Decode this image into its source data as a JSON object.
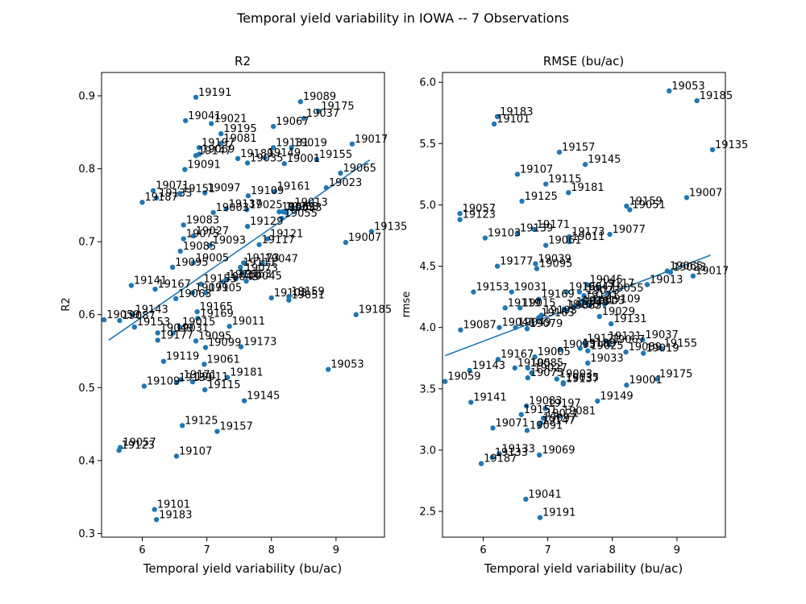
{
  "figure": {
    "suptitle": "Temporal yield variability in IOWA -- 7 Observations"
  },
  "chart_data": [
    {
      "type": "scatter",
      "title": "R2",
      "xlabel": "Temporal yield variability (bu/ac)",
      "ylabel": "R2",
      "xlim": [
        5.37,
        9.75
      ],
      "ylim": [
        0.295,
        0.932
      ],
      "xticks": [
        6,
        7,
        8,
        9
      ],
      "yticks": [
        0.3,
        0.4,
        0.5,
        0.6,
        0.7,
        0.8,
        0.9
      ],
      "xtick_labels": [
        "6",
        "7",
        "8",
        "9"
      ],
      "ytick_labels": [
        "0.3",
        "0.4",
        "0.5",
        "0.6",
        "0.7",
        "0.8",
        "0.9"
      ],
      "grid": false,
      "trendline": {
        "x": [
          5.48,
          9.52
        ],
        "y": [
          0.565,
          0.812
        ]
      },
      "points": [
        {
          "x": 6.83,
          "y": 0.898,
          "label": "19191"
        },
        {
          "x": 8.45,
          "y": 0.892,
          "label": "19089"
        },
        {
          "x": 8.73,
          "y": 0.879,
          "label": "19175"
        },
        {
          "x": 8.5,
          "y": 0.869,
          "label": "19037"
        },
        {
          "x": 6.67,
          "y": 0.866,
          "label": "19041"
        },
        {
          "x": 7.07,
          "y": 0.862,
          "label": "19021"
        },
        {
          "x": 8.03,
          "y": 0.858,
          "label": "19067"
        },
        {
          "x": 7.22,
          "y": 0.848,
          "label": "19195"
        },
        {
          "x": 7.22,
          "y": 0.835,
          "label": "19081"
        },
        {
          "x": 9.25,
          "y": 0.834,
          "label": "19017"
        },
        {
          "x": 8.03,
          "y": 0.829,
          "label": "19131"
        },
        {
          "x": 8.31,
          "y": 0.829,
          "label": "19019"
        },
        {
          "x": 6.88,
          "y": 0.829,
          "label": "19197"
        },
        {
          "x": 6.88,
          "y": 0.82,
          "label": "19069"
        },
        {
          "x": 6.83,
          "y": 0.818,
          "label": "19147"
        },
        {
          "x": 7.48,
          "y": 0.814,
          "label": "19189"
        },
        {
          "x": 7.9,
          "y": 0.815,
          "label": "19149"
        },
        {
          "x": 7.63,
          "y": 0.808,
          "label": "19035"
        },
        {
          "x": 8.7,
          "y": 0.813,
          "label": "19155"
        },
        {
          "x": 8.2,
          "y": 0.807,
          "label": "19001"
        },
        {
          "x": 6.66,
          "y": 0.799,
          "label": "19091"
        },
        {
          "x": 9.07,
          "y": 0.794,
          "label": "19065"
        },
        {
          "x": 8.85,
          "y": 0.774,
          "label": "19023"
        },
        {
          "x": 6.17,
          "y": 0.77,
          "label": "19071"
        },
        {
          "x": 8.05,
          "y": 0.769,
          "label": "19161"
        },
        {
          "x": 6.97,
          "y": 0.767,
          "label": "19097"
        },
        {
          "x": 6.58,
          "y": 0.766,
          "label": "19151"
        },
        {
          "x": 7.64,
          "y": 0.763,
          "label": "19109"
        },
        {
          "x": 6.22,
          "y": 0.76,
          "label": "19133"
        },
        {
          "x": 6.0,
          "y": 0.754,
          "label": "19187"
        },
        {
          "x": 8.32,
          "y": 0.747,
          "label": "19013"
        },
        {
          "x": 7.3,
          "y": 0.745,
          "label": "19137"
        },
        {
          "x": 7.62,
          "y": 0.744,
          "label": "19025"
        },
        {
          "x": 7.1,
          "y": 0.74,
          "label": "19003"
        },
        {
          "x": 8.12,
          "y": 0.741,
          "label": "19039"
        },
        {
          "x": 8.18,
          "y": 0.741,
          "label": "19063"
        },
        {
          "x": 8.23,
          "y": 0.74,
          "label": "19033"
        },
        {
          "x": 8.16,
          "y": 0.732,
          "label": "19055"
        },
        {
          "x": 6.64,
          "y": 0.723,
          "label": "19083"
        },
        {
          "x": 7.63,
          "y": 0.721,
          "label": "19129"
        },
        {
          "x": 9.55,
          "y": 0.714,
          "label": "19135"
        },
        {
          "x": 6.79,
          "y": 0.708,
          "label": "19027"
        },
        {
          "x": 6.64,
          "y": 0.704,
          "label": "19075"
        },
        {
          "x": 7.94,
          "y": 0.704,
          "label": "19121"
        },
        {
          "x": 9.15,
          "y": 0.699,
          "label": "19007"
        },
        {
          "x": 7.81,
          "y": 0.696,
          "label": "19117"
        },
        {
          "x": 7.05,
          "y": 0.695,
          "label": "19093"
        },
        {
          "x": 6.59,
          "y": 0.687,
          "label": "19085"
        },
        {
          "x": 6.79,
          "y": 0.671,
          "label": "19005"
        },
        {
          "x": 7.57,
          "y": 0.671,
          "label": "19173"
        },
        {
          "x": 7.86,
          "y": 0.67,
          "label": "19047"
        },
        {
          "x": 6.47,
          "y": 0.665,
          "label": "19095"
        },
        {
          "x": 7.52,
          "y": 0.665,
          "label": "19111"
        },
        {
          "x": 7.55,
          "y": 0.657,
          "label": "19073"
        },
        {
          "x": 7.45,
          "y": 0.649,
          "label": "19163"
        },
        {
          "x": 7.3,
          "y": 0.648,
          "label": "19165"
        },
        {
          "x": 7.61,
          "y": 0.646,
          "label": "19045"
        },
        {
          "x": 7.25,
          "y": 0.645,
          "label": "19043"
        },
        {
          "x": 6.91,
          "y": 0.642,
          "label": "19153"
        },
        {
          "x": 5.83,
          "y": 0.64,
          "label": "19141"
        },
        {
          "x": 6.2,
          "y": 0.635,
          "label": "19167"
        },
        {
          "x": 6.78,
          "y": 0.63,
          "label": "19079"
        },
        {
          "x": 6.99,
          "y": 0.63,
          "label": "19105"
        },
        {
          "x": 6.52,
          "y": 0.622,
          "label": "19063"
        },
        {
          "x": 8.0,
          "y": 0.623,
          "label": "19103"
        },
        {
          "x": 8.27,
          "y": 0.625,
          "label": "19159"
        },
        {
          "x": 8.27,
          "y": 0.62,
          "label": "19051"
        },
        {
          "x": 6.85,
          "y": 0.604,
          "label": "19165"
        },
        {
          "x": 9.31,
          "y": 0.6,
          "label": "19185"
        },
        {
          "x": 5.85,
          "y": 0.6,
          "label": "19143"
        },
        {
          "x": 6.86,
          "y": 0.595,
          "label": "19169"
        },
        {
          "x": 5.41,
          "y": 0.593,
          "label": "19059"
        },
        {
          "x": 5.65,
          "y": 0.592,
          "label": "19087"
        },
        {
          "x": 7.35,
          "y": 0.584,
          "label": "19011"
        },
        {
          "x": 5.88,
          "y": 0.583,
          "label": "19153"
        },
        {
          "x": 6.58,
          "y": 0.583,
          "label": "19015"
        },
        {
          "x": 6.24,
          "y": 0.575,
          "label": "19049"
        },
        {
          "x": 6.48,
          "y": 0.575,
          "label": "19031"
        },
        {
          "x": 6.24,
          "y": 0.565,
          "label": "19177"
        },
        {
          "x": 6.83,
          "y": 0.564,
          "label": "19095"
        },
        {
          "x": 7.53,
          "y": 0.556,
          "label": "19173"
        },
        {
          "x": 6.98,
          "y": 0.555,
          "label": "19099"
        },
        {
          "x": 6.33,
          "y": 0.536,
          "label": "19119"
        },
        {
          "x": 6.96,
          "y": 0.532,
          "label": "19061"
        },
        {
          "x": 7.32,
          "y": 0.514,
          "label": "19181"
        },
        {
          "x": 6.6,
          "y": 0.511,
          "label": "19171"
        },
        {
          "x": 6.78,
          "y": 0.508,
          "label": "19011"
        },
        {
          "x": 6.53,
          "y": 0.507,
          "label": "19139"
        },
        {
          "x": 6.03,
          "y": 0.502,
          "label": "19109"
        },
        {
          "x": 6.97,
          "y": 0.497,
          "label": "19115"
        },
        {
          "x": 7.58,
          "y": 0.482,
          "label": "19145"
        },
        {
          "x": 8.88,
          "y": 0.525,
          "label": "19053"
        },
        {
          "x": 6.62,
          "y": 0.448,
          "label": "19125"
        },
        {
          "x": 7.16,
          "y": 0.44,
          "label": "19157"
        },
        {
          "x": 5.66,
          "y": 0.418,
          "label": "19057"
        },
        {
          "x": 5.64,
          "y": 0.414,
          "label": "19123"
        },
        {
          "x": 6.53,
          "y": 0.406,
          "label": "19107"
        },
        {
          "x": 6.19,
          "y": 0.333,
          "label": "19101"
        },
        {
          "x": 6.22,
          "y": 0.319,
          "label": "19183"
        }
      ]
    },
    {
      "type": "scatter",
      "title": "RMSE (bu/ac)",
      "xlabel": "Temporal yield variability (bu/ac)",
      "ylabel": "rmse",
      "xlim": [
        5.37,
        9.75
      ],
      "ylim": [
        2.29,
        6.08
      ],
      "xticks": [
        6,
        7,
        8,
        9
      ],
      "yticks": [
        2.5,
        3.0,
        3.5,
        4.0,
        4.5,
        5.0,
        5.5,
        6.0
      ],
      "xtick_labels": [
        "6",
        "7",
        "8",
        "9"
      ],
      "ytick_labels": [
        "2.5",
        "3.0",
        "3.5",
        "4.0",
        "4.5",
        "5.0",
        "5.5",
        "6.0"
      ],
      "grid": false,
      "trendline": {
        "x": [
          5.41,
          9.52
        ],
        "y": [
          3.77,
          4.59
        ]
      },
      "points": [
        {
          "x": 8.88,
          "y": 5.93,
          "label": "19053"
        },
        {
          "x": 9.31,
          "y": 5.85,
          "label": "19185"
        },
        {
          "x": 6.22,
          "y": 5.72,
          "label": "19183"
        },
        {
          "x": 6.17,
          "y": 5.66,
          "label": "19101"
        },
        {
          "x": 9.55,
          "y": 5.45,
          "label": "19135"
        },
        {
          "x": 7.18,
          "y": 5.43,
          "label": "19157"
        },
        {
          "x": 7.58,
          "y": 5.33,
          "label": "19145"
        },
        {
          "x": 6.53,
          "y": 5.25,
          "label": "19107"
        },
        {
          "x": 6.97,
          "y": 5.17,
          "label": "19115"
        },
        {
          "x": 7.32,
          "y": 5.1,
          "label": "19181"
        },
        {
          "x": 9.15,
          "y": 5.06,
          "label": "19007"
        },
        {
          "x": 6.6,
          "y": 5.03,
          "label": "19125"
        },
        {
          "x": 8.22,
          "y": 4.99,
          "label": "19159"
        },
        {
          "x": 8.27,
          "y": 4.96,
          "label": "19051"
        },
        {
          "x": 5.64,
          "y": 4.93,
          "label": "19057"
        },
        {
          "x": 5.64,
          "y": 4.88,
          "label": "19123"
        },
        {
          "x": 6.79,
          "y": 4.8,
          "label": "19171"
        },
        {
          "x": 7.96,
          "y": 4.76,
          "label": "19077"
        },
        {
          "x": 6.53,
          "y": 4.77,
          "label": "19139"
        },
        {
          "x": 7.33,
          "y": 4.74,
          "label": "19173"
        },
        {
          "x": 6.03,
          "y": 4.73,
          "label": "19103"
        },
        {
          "x": 7.33,
          "y": 4.7,
          "label": "19011"
        },
        {
          "x": 6.97,
          "y": 4.67,
          "label": "19061"
        },
        {
          "x": 6.81,
          "y": 4.52,
          "label": "19039"
        },
        {
          "x": 6.22,
          "y": 4.5,
          "label": "19177"
        },
        {
          "x": 6.83,
          "y": 4.48,
          "label": "19095"
        },
        {
          "x": 9.25,
          "y": 4.42,
          "label": "19017"
        },
        {
          "x": 8.85,
          "y": 4.46,
          "label": "19065"
        },
        {
          "x": 8.9,
          "y": 4.45,
          "label": "19023"
        },
        {
          "x": 8.54,
          "y": 4.35,
          "label": "19013"
        },
        {
          "x": 7.61,
          "y": 4.35,
          "label": "19045"
        },
        {
          "x": 7.79,
          "y": 4.32,
          "label": "19117"
        },
        {
          "x": 5.85,
          "y": 4.29,
          "label": "19153"
        },
        {
          "x": 6.44,
          "y": 4.29,
          "label": "19031"
        },
        {
          "x": 7.29,
          "y": 4.29,
          "label": "19165"
        },
        {
          "x": 7.49,
          "y": 4.29,
          "label": "19047"
        },
        {
          "x": 7.93,
          "y": 4.28,
          "label": "19055"
        },
        {
          "x": 7.56,
          "y": 4.26,
          "label": "19073"
        },
        {
          "x": 6.86,
          "y": 4.23,
          "label": "19169"
        },
        {
          "x": 7.54,
          "y": 4.22,
          "label": "19121"
        },
        {
          "x": 7.88,
          "y": 4.19,
          "label": "19109"
        },
        {
          "x": 6.34,
          "y": 4.16,
          "label": "19119"
        },
        {
          "x": 7.4,
          "y": 4.17,
          "label": "19043"
        },
        {
          "x": 7.5,
          "y": 4.18,
          "label": "19161"
        },
        {
          "x": 7.64,
          "y": 4.18,
          "label": "19003"
        },
        {
          "x": 6.57,
          "y": 4.16,
          "label": "19015"
        },
        {
          "x": 7.25,
          "y": 4.15,
          "label": "19135"
        },
        {
          "x": 7.28,
          "y": 4.14,
          "label": "19063"
        },
        {
          "x": 6.9,
          "y": 4.1,
          "label": "19193"
        },
        {
          "x": 6.86,
          "y": 4.08,
          "label": "19163"
        },
        {
          "x": 7.8,
          "y": 4.09,
          "label": "19029"
        },
        {
          "x": 7.98,
          "y": 4.03,
          "label": "19131"
        },
        {
          "x": 6.25,
          "y": 4.0,
          "label": "19043"
        },
        {
          "x": 6.5,
          "y": 4.0,
          "label": "19049"
        },
        {
          "x": 6.68,
          "y": 3.99,
          "label": "19079"
        },
        {
          "x": 5.65,
          "y": 3.98,
          "label": "19087"
        },
        {
          "x": 8.47,
          "y": 3.9,
          "label": "19037"
        },
        {
          "x": 7.9,
          "y": 3.89,
          "label": "19121"
        },
        {
          "x": 7.57,
          "y": 3.87,
          "label": "19121"
        },
        {
          "x": 7.95,
          "y": 3.86,
          "label": "19067"
        },
        {
          "x": 8.76,
          "y": 3.83,
          "label": "19155"
        },
        {
          "x": 7.19,
          "y": 3.82,
          "label": "19093"
        },
        {
          "x": 7.5,
          "y": 3.83,
          "label": "19189"
        },
        {
          "x": 7.62,
          "y": 3.81,
          "label": "19025"
        },
        {
          "x": 8.48,
          "y": 3.79,
          "label": "19019"
        },
        {
          "x": 8.21,
          "y": 3.8,
          "label": "19089"
        },
        {
          "x": 6.23,
          "y": 3.74,
          "label": "19167"
        },
        {
          "x": 6.8,
          "y": 3.76,
          "label": "19005"
        },
        {
          "x": 7.62,
          "y": 3.71,
          "label": "19033"
        },
        {
          "x": 5.79,
          "y": 3.65,
          "label": "19143"
        },
        {
          "x": 6.49,
          "y": 3.67,
          "label": "19105"
        },
        {
          "x": 6.69,
          "y": 3.67,
          "label": "19085"
        },
        {
          "x": 6.75,
          "y": 3.63,
          "label": "19027"
        },
        {
          "x": 6.69,
          "y": 3.59,
          "label": "19075"
        },
        {
          "x": 8.69,
          "y": 3.58,
          "label": "19175"
        },
        {
          "x": 7.14,
          "y": 3.58,
          "label": "19003"
        },
        {
          "x": 5.41,
          "y": 3.56,
          "label": "19059"
        },
        {
          "x": 7.24,
          "y": 3.54,
          "label": "19137"
        },
        {
          "x": 7.24,
          "y": 3.55,
          "label": "19035"
        },
        {
          "x": 8.22,
          "y": 3.53,
          "label": "19001"
        },
        {
          "x": 7.77,
          "y": 3.4,
          "label": "19149"
        },
        {
          "x": 5.81,
          "y": 3.39,
          "label": "19141"
        },
        {
          "x": 6.67,
          "y": 3.36,
          "label": "19083"
        },
        {
          "x": 6.96,
          "y": 3.34,
          "label": "19197"
        },
        {
          "x": 6.59,
          "y": 3.29,
          "label": "19151"
        },
        {
          "x": 7.19,
          "y": 3.28,
          "label": "19081"
        },
        {
          "x": 6.93,
          "y": 3.26,
          "label": "19021"
        },
        {
          "x": 6.89,
          "y": 3.22,
          "label": "19097"
        },
        {
          "x": 6.87,
          "y": 3.2,
          "label": "19147"
        },
        {
          "x": 6.15,
          "y": 3.18,
          "label": "19071"
        },
        {
          "x": 6.68,
          "y": 3.16,
          "label": "19091"
        },
        {
          "x": 6.87,
          "y": 2.96,
          "label": "19069"
        },
        {
          "x": 6.25,
          "y": 2.97,
          "label": "19133"
        },
        {
          "x": 6.14,
          "y": 2.94,
          "label": "19133"
        },
        {
          "x": 5.97,
          "y": 2.89,
          "label": "19187"
        },
        {
          "x": 6.66,
          "y": 2.6,
          "label": "19041"
        },
        {
          "x": 6.88,
          "y": 2.45,
          "label": "19191"
        }
      ]
    }
  ]
}
